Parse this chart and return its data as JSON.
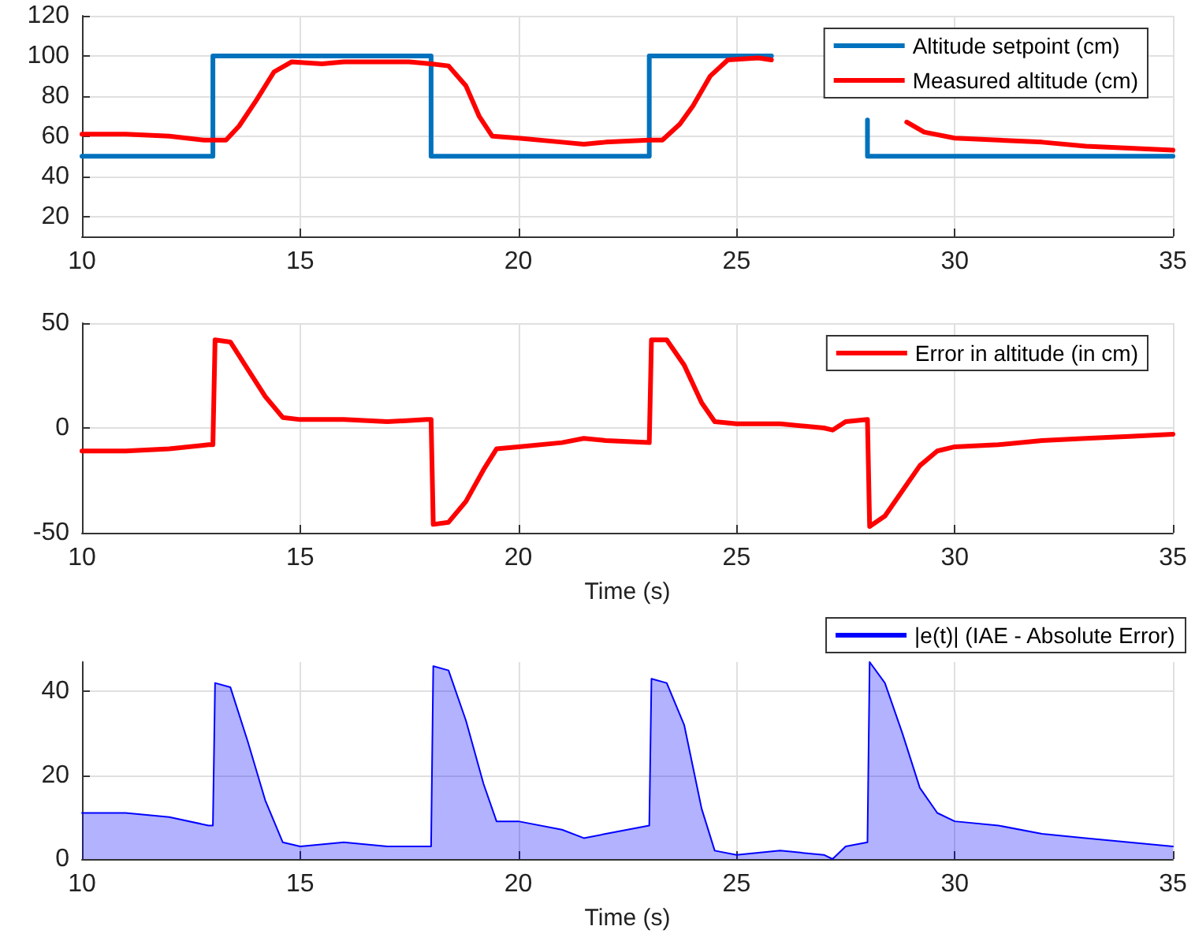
{
  "chart_data": [
    {
      "type": "line",
      "xlim": [
        10,
        35
      ],
      "xticks": [
        10,
        15,
        20,
        25,
        30,
        35
      ],
      "ylim": [
        10,
        120
      ],
      "yticks": [
        20,
        40,
        60,
        80,
        100,
        120
      ],
      "grid": true,
      "legend": "top right",
      "series": [
        {
          "name": "Altitude setpoint (cm)",
          "color": "#0072bd",
          "x": [
            10,
            13,
            13,
            18,
            18,
            23,
            23,
            25.8,
            27,
            28,
            28,
            35
          ],
          "values": [
            50,
            50,
            100,
            100,
            50,
            50,
            100,
            100,
            null,
            68,
            50,
            50
          ]
        },
        {
          "name": "Measured altitude (cm)",
          "color": "#ff0000",
          "x": [
            10,
            11,
            12,
            12.8,
            13.3,
            13.6,
            14,
            14.4,
            14.8,
            15.5,
            16,
            17,
            17.5,
            18,
            18.4,
            18.8,
            19.1,
            19.4,
            20,
            21,
            21.5,
            22,
            23,
            23.3,
            23.7,
            24,
            24.4,
            24.8,
            25.5,
            25.8,
            27,
            28.9,
            29.3,
            30,
            31,
            32,
            33,
            34,
            35
          ],
          "values": [
            61,
            61,
            60,
            58,
            58,
            65,
            78,
            92,
            97,
            96,
            97,
            97,
            97,
            96,
            95,
            85,
            70,
            60,
            59,
            57,
            56,
            57,
            58,
            58,
            66,
            75,
            90,
            98,
            99,
            98,
            null,
            67,
            62,
            59,
            58,
            57,
            55,
            54,
            53
          ]
        }
      ]
    },
    {
      "type": "line",
      "xlabel": "Time (s)",
      "xlim": [
        10,
        35
      ],
      "xticks": [
        10,
        15,
        20,
        25,
        30,
        35
      ],
      "ylim": [
        -50,
        50
      ],
      "yticks": [
        -50,
        0,
        50
      ],
      "grid": true,
      "legend": "top right",
      "series": [
        {
          "name": "Error in altitude (in cm)",
          "color": "#ff0000",
          "x": [
            10,
            11,
            12,
            12.9,
            13.0,
            13.05,
            13.4,
            13.8,
            14.2,
            14.6,
            15,
            16,
            17,
            17.9,
            18.0,
            18.05,
            18.4,
            18.8,
            19.2,
            19.5,
            20,
            21,
            21.5,
            22,
            23,
            23.05,
            23.4,
            23.8,
            24.2,
            24.5,
            25,
            26,
            27,
            27.2,
            27.5,
            28,
            28.05,
            28.4,
            28.8,
            29.2,
            29.6,
            30,
            31,
            32,
            33,
            34,
            35
          ],
          "values": [
            -11,
            -11,
            -10,
            -8,
            -8,
            42,
            41,
            28,
            15,
            5,
            4,
            4,
            3,
            4,
            4,
            -46,
            -45,
            -35,
            -20,
            -10,
            -9,
            -7,
            -5,
            -6,
            -7,
            42,
            42,
            30,
            12,
            3,
            2,
            2,
            0,
            -1,
            3,
            4,
            -47,
            -42,
            -30,
            -18,
            -11,
            -9,
            -8,
            -6,
            -5,
            -4,
            -3
          ]
        }
      ]
    },
    {
      "type": "area",
      "xlabel": "Time (s)",
      "xlim": [
        10,
        35
      ],
      "xticks": [
        10,
        15,
        20,
        25,
        30,
        35
      ],
      "ylim": [
        0,
        47
      ],
      "yticks": [
        0,
        20,
        40
      ],
      "grid": true,
      "legend": "top right",
      "series": [
        {
          "name": "|e(t)| (IAE - Absolute Error)",
          "color": "#0000ff",
          "x": [
            10,
            11,
            12,
            12.9,
            13.0,
            13.05,
            13.4,
            13.8,
            14.2,
            14.6,
            15,
            16,
            17,
            17.9,
            18.0,
            18.05,
            18.4,
            18.8,
            19.2,
            19.5,
            20,
            21,
            21.5,
            22,
            23,
            23.05,
            23.4,
            23.8,
            24.2,
            24.5,
            25,
            26,
            27,
            27.2,
            27.5,
            28,
            28.05,
            28.4,
            28.8,
            29.2,
            29.6,
            30,
            31,
            32,
            33,
            34,
            35
          ],
          "values": [
            11,
            11,
            10,
            8,
            8,
            42,
            41,
            28,
            14,
            4,
            3,
            4,
            3,
            3,
            3,
            46,
            45,
            33,
            18,
            9,
            9,
            7,
            5,
            6,
            8,
            43,
            42,
            32,
            12,
            2,
            1,
            2,
            1,
            0,
            3,
            4,
            47,
            42,
            30,
            17,
            11,
            9,
            8,
            6,
            5,
            4,
            3
          ]
        }
      ]
    }
  ]
}
